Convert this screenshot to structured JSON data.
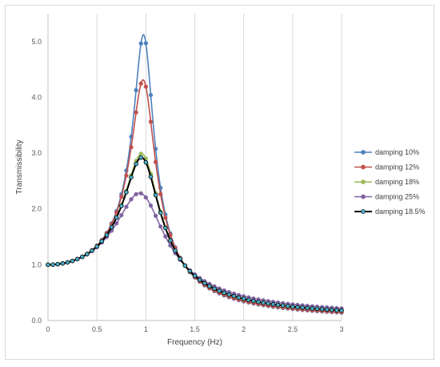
{
  "chart_data": {
    "type": "line",
    "title": "",
    "xlabel": "Frequency (Hz)",
    "ylabel": "Transmissibility",
    "xlim": [
      0,
      3
    ],
    "ylim": [
      0,
      5.5
    ],
    "x_ticks": [
      0,
      0.5,
      1,
      1.5,
      2,
      2.5,
      3
    ],
    "x_tick_labels": [
      "0",
      "0.5",
      "1",
      "1.5",
      "2",
      "2.5",
      "3"
    ],
    "y_ticks": [
      0,
      1,
      2,
      3,
      4,
      5
    ],
    "y_tick_labels": [
      "0.0",
      "1.0",
      "2.0",
      "3.0",
      "4.0",
      "5.0"
    ],
    "grid": "vertical major gridlines",
    "legend_position": "right",
    "natural_frequency_hz": 0.985,
    "sample_step_hz": 0.05,
    "series": [
      {
        "name": "damping 10%",
        "damping": 0.1,
        "color": "#4e81bd",
        "marker": "circle",
        "peak_y": 5.13
      },
      {
        "name": "damping 12%",
        "damping": 0.12,
        "color": "#c0504d",
        "marker": "circle",
        "peak_y": 4.22
      },
      {
        "name": "damping 18%",
        "damping": 0.18,
        "color": "#9bbb59",
        "marker": "circle",
        "peak_y": 2.96
      },
      {
        "name": "damping 25%",
        "damping": 0.25,
        "color": "#8064a2",
        "marker": "circle",
        "peak_y": 2.28
      },
      {
        "name": "damping 18.5%",
        "damping": 0.185,
        "color": "#000000",
        "marker_fill": "#4bacc6",
        "marker": "circle",
        "peak_y": 2.91
      }
    ]
  }
}
